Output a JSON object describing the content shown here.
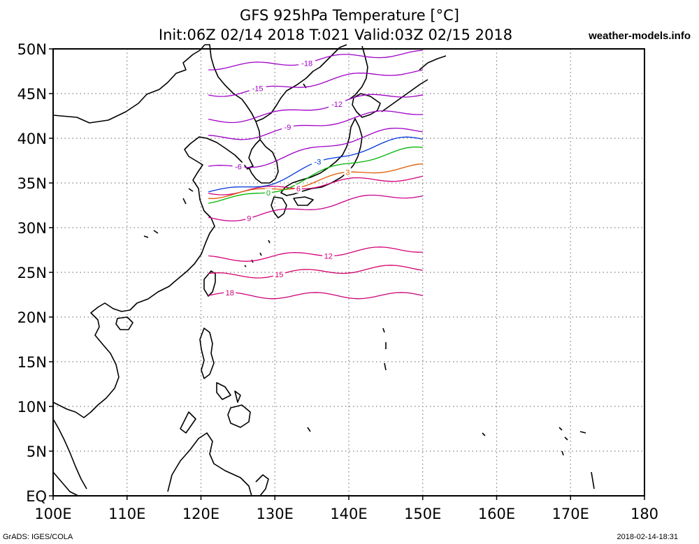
{
  "title_line1": "GFS 925hPa Temperature [°C]",
  "title_line2": "Init:06Z 02/14 2018 T:021 Valid:03Z 02/15 2018",
  "site": "weather-models.info",
  "footer_left": "GrADS: IGES/COLA",
  "footer_right": "2018-02-14-18:31",
  "map": {
    "lon_range": [
      100,
      180
    ],
    "lat_range": [
      0,
      50
    ],
    "data_lon_max": 150,
    "x_ticks": [
      "100E",
      "110E",
      "120E",
      "130E",
      "140E",
      "150E",
      "160E",
      "170E",
      "180"
    ],
    "y_ticks": [
      "EQ",
      "5N",
      "10N",
      "15N",
      "20N",
      "25N",
      "30N",
      "35N",
      "40N",
      "45N",
      "50N"
    ],
    "grid": true
  },
  "contours": [
    {
      "value": 18,
      "label": "18",
      "color": "#cc0077",
      "start_lat": 22.4,
      "end_lat": 22.4
    },
    {
      "value": 15,
      "label": "15",
      "color": "#d4006a",
      "start_lat": 24.6,
      "end_lat": 25.5
    },
    {
      "value": 12,
      "label": "12",
      "color": "#d4007a",
      "start_lat": 26.5,
      "end_lat": 27.6
    },
    {
      "value": 9,
      "label": "9",
      "color": "#c8008a",
      "start_lat": 31.0,
      "end_lat": 33.7
    },
    {
      "value": 6,
      "label": "6",
      "color": "#d4007a",
      "start_lat": 34.0,
      "end_lat": 35.6
    },
    {
      "value": 3,
      "label": "3",
      "color": "#e05a00",
      "start_lat": 33.6,
      "end_lat": 36.8
    },
    {
      "value": 0,
      "label": "0",
      "color": "#00b400",
      "start_lat": 33.0,
      "end_lat": 38.7
    },
    {
      "value": -3,
      "label": "-3",
      "color": "#0038d8",
      "start_lat": 34.0,
      "end_lat": 39.9
    },
    {
      "value": -6,
      "label": "-6",
      "color": "#a000c8",
      "start_lat": 36.6,
      "end_lat": 41.0
    },
    {
      "value": -9,
      "label": "-9",
      "color": "#a000c8",
      "start_lat": 40.0,
      "end_lat": 43.0
    },
    {
      "value": -12,
      "label": "-12",
      "color": "#a000c8",
      "start_lat": 42.0,
      "end_lat": 45.0
    },
    {
      "value": -15,
      "label": "-15",
      "color": "#a000c8",
      "start_lat": 45.0,
      "end_lat": 47.5
    },
    {
      "value": -18,
      "label": "-18",
      "color": "#a000c8",
      "start_lat": 48.0,
      "end_lat": 49.5
    }
  ],
  "colors": {
    "background": "#ffffff",
    "coast": "#000000",
    "grid": "#808080"
  }
}
